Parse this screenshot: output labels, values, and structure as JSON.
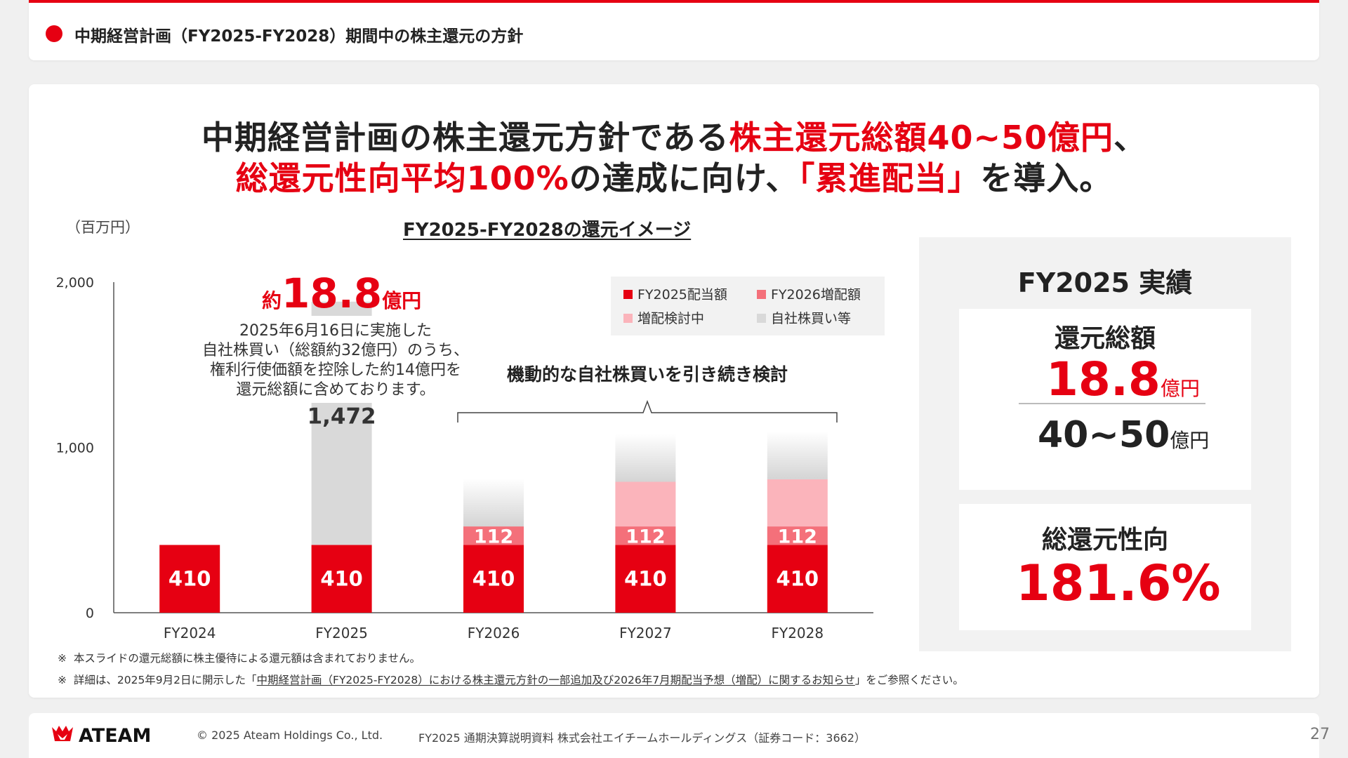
{
  "header": {
    "title": "中期経営計画（FY2025-FY2028）期間中の株主還元の方針"
  },
  "headline": {
    "line1_a": "中期経営計画の株主還元方針である",
    "line1_b": "株主還元総額40~50億円",
    "line1_c": "、",
    "line2_a": "総還元性向平均100%",
    "line2_b": "の達成に向け、",
    "line2_c": "「累進配当」",
    "line2_d": "を導入。"
  },
  "chart_title": "FY2025-FY2028の還元イメージ",
  "unit_label": "（百万円）",
  "chart_data": {
    "type": "bar",
    "stacked": true,
    "categories": [
      "FY2024",
      "FY2025",
      "FY2026",
      "FY2027",
      "FY2028"
    ],
    "ylim": [
      0,
      2000
    ],
    "yticks": [
      "0",
      "1,000",
      "2,000"
    ],
    "series": [
      {
        "name": "FY2025配当額",
        "color": "#e60012",
        "values": [
          410,
          410,
          410,
          410,
          410
        ]
      },
      {
        "name": "FY2026増配額",
        "color": "#f4707a",
        "values": [
          0,
          0,
          112,
          112,
          112
        ]
      },
      {
        "name": "増配検討中",
        "color": "#fbb4bb",
        "values": [
          0,
          0,
          0,
          270,
          285
        ]
      },
      {
        "name": "自社株買い等",
        "color": "#d9d9d9",
        "values": [
          0,
          1472,
          290,
          290,
          290
        ]
      }
    ],
    "bar_labels": {
      "dividend": [
        "410",
        "410",
        "410",
        "410",
        "410"
      ],
      "increase": [
        "",
        "",
        "112",
        "112",
        "112"
      ],
      "buyback_fy2025": "1,472"
    },
    "gradient_categories": [
      "FY2026",
      "FY2027",
      "FY2028"
    ]
  },
  "annotations": {
    "total_prefix": "約",
    "total_value": "18.8",
    "total_unit": "億円",
    "note_lines": [
      "2025年6月16日に実施した",
      "自社株買い（総額約32億円）のうち、",
      "権利行使価額を控除した約14億円を",
      "還元総額に含めております。"
    ],
    "brace_label": "機動的な自社株買いを引き続き検討"
  },
  "notes": {
    "mark": "※",
    "note1": "本スライドの還元総額に株主優待による還元額は含まれておりません。",
    "note2_pre": "詳細は、2025年9月2日に開示した「",
    "note2_link": "中期経営計画（FY2025-FY2028）における株主還元方針の一部追加及び2026年7月期配当予想（増配）に関するお知らせ",
    "note2_post": "」をご参照ください。"
  },
  "side": {
    "title": "FY2025 実績",
    "total_label": "還元総額",
    "total_value": "18.8",
    "total_unit": "億円",
    "target_value": "40~50",
    "target_unit": "億円",
    "payout_label": "総還元性向",
    "payout_value": "181.6%"
  },
  "footer": {
    "logo_text": "ATEAM",
    "copyright": "© 2025 Ateam Holdings Co., Ltd.",
    "doc": "FY2025 通期決算説明資料 株式会社エイチームホールディングス（証券コード：3662）",
    "page": "27"
  },
  "colors": {
    "accent": "#e60012",
    "increase": "#f4707a",
    "pending": "#fbb4bb",
    "buyback": "#d9d9d9"
  }
}
